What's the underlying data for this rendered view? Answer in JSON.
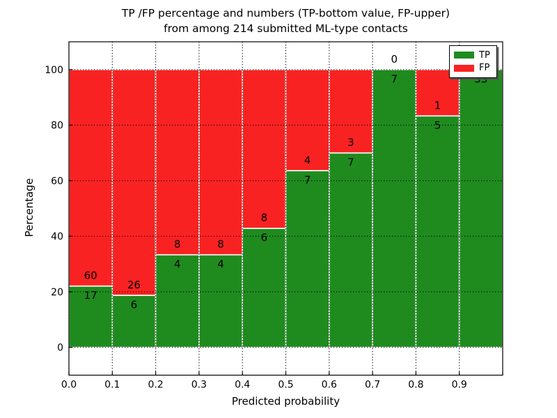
{
  "figure": {
    "background": "#ffffff"
  },
  "chart_data": {
    "type": "bar",
    "stacked": true,
    "normalized_to_percent": true,
    "title_line1": "TP /FP percentage and numbers (TP-bottom value, FP-upper)",
    "title_line2": "from among 214 submitted ML-type contacts",
    "xlabel": "Predicted probability",
    "ylabel": "Percentage",
    "total_submitted": 214,
    "bin_width": 0.1,
    "bin_starts": [
      0.0,
      0.1,
      0.2,
      0.3,
      0.4,
      0.5,
      0.6,
      0.7,
      0.8,
      0.9
    ],
    "series": [
      {
        "name": "TP",
        "color": "#1f8b1f",
        "counts": [
          17,
          6,
          4,
          4,
          6,
          7,
          7,
          7,
          5,
          33
        ]
      },
      {
        "name": "FP",
        "color": "#f92222",
        "counts": [
          60,
          26,
          8,
          8,
          8,
          4,
          3,
          0,
          1,
          0
        ]
      }
    ],
    "bar_percent_tp": [
      22.08,
      18.75,
      33.33,
      33.33,
      42.86,
      63.64,
      70.0,
      100.0,
      83.33,
      100.0
    ],
    "xticks": [
      "0.0",
      "0.1",
      "0.2",
      "0.3",
      "0.4",
      "0.5",
      "0.6",
      "0.7",
      "0.8",
      "0.9"
    ],
    "yticks": [
      0,
      20,
      40,
      60,
      80,
      100
    ],
    "xlim": [
      0.0,
      1.0
    ],
    "ylim": [
      -10,
      110
    ],
    "grid": "dotted black, both axes, drawn above bars",
    "bar_edge_color": "#ffffff",
    "legend": {
      "position": "upper right",
      "entries": [
        {
          "label": "TP",
          "color": "#1f8b1f"
        },
        {
          "label": "FP",
          "color": "#f92222"
        }
      ]
    }
  }
}
